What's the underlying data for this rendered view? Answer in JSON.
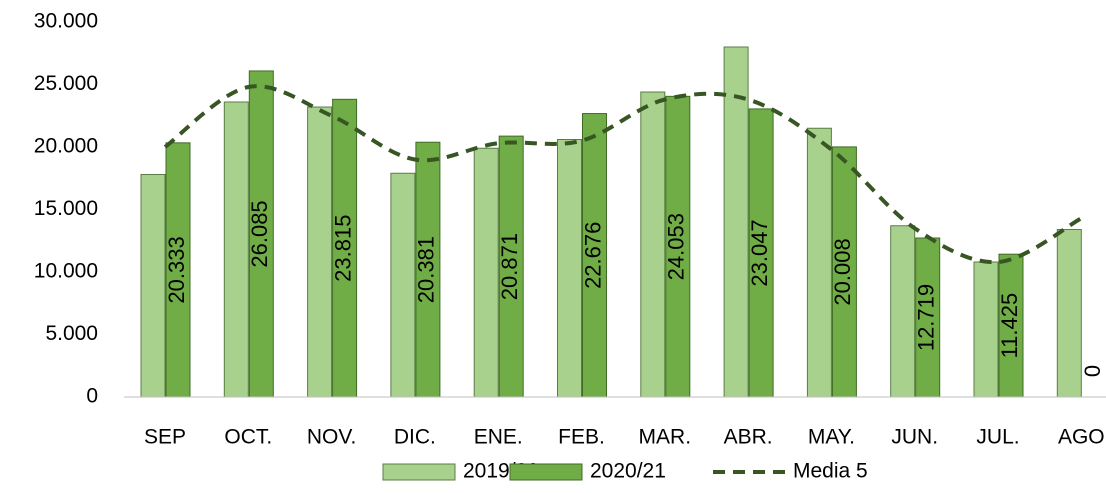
{
  "chart_data": {
    "type": "bar",
    "categories": [
      "SEP",
      "OCT.",
      "NOV.",
      "DIC.",
      "ENE.",
      "FEB.",
      "MAR.",
      "ABR.",
      "MAY.",
      "JUN.",
      "JUL.",
      "AGO"
    ],
    "series": [
      {
        "name": "2019/20",
        "color": "#a9d18e",
        "values": [
          17800,
          23600,
          23200,
          17900,
          19900,
          20600,
          24400,
          28000,
          21500,
          13700,
          10800,
          13400
        ]
      },
      {
        "name": "2020/21",
        "color": "#70ad47",
        "values": [
          20333,
          26085,
          23815,
          20381,
          20871,
          22676,
          24053,
          23047,
          20008,
          12719,
          11425,
          0
        ],
        "value_labels": [
          "20.333",
          "26.085",
          "23.815",
          "20.381",
          "20.871",
          "22.676",
          "24.053",
          "23.047",
          "20.008",
          "12.719",
          "11.425",
          "0"
        ]
      },
      {
        "name": "Media 5",
        "type": "line",
        "color": "#375623",
        "values": [
          20000,
          24800,
          22500,
          19000,
          20300,
          20500,
          23800,
          23800,
          19800,
          13500,
          10800,
          14300
        ]
      }
    ],
    "ylim": [
      0,
      30000
    ],
    "yticks": [
      0,
      {
        "value": 5000,
        "label": "5.000"
      },
      {
        "value": 10000,
        "label": "10.000"
      },
      {
        "value": 15000,
        "label": "15.000"
      },
      {
        "value": 20000,
        "label": "20.000"
      },
      {
        "value": 25000,
        "label": "25.000"
      },
      {
        "value": 30000,
        "label": "30.000"
      }
    ],
    "grid": false
  }
}
